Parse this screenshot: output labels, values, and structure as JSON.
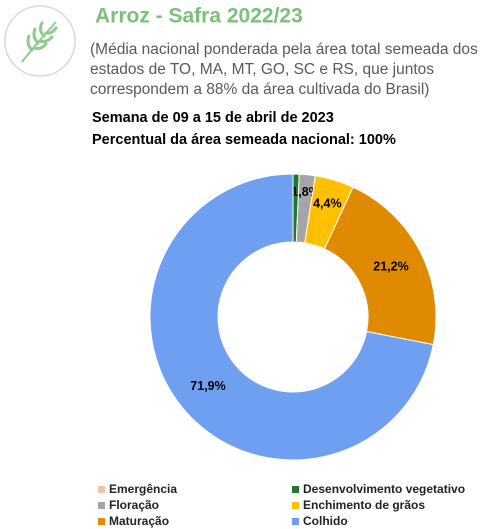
{
  "chart_data": {
    "type": "donut",
    "title": "Arroz - Safra 2022/23",
    "subtitle": [
      "(Média nacional ponderada pela área total semeada dos",
      "estados de TO, MA, MT, GO, SC e RS, que juntos",
      "correspondem a 88% da área cultivada do Brasil)"
    ],
    "week": "Semana de 09 a 15 de abril de 2023",
    "area_note": "Percentual da área semeada nacional: 100%",
    "categories": [
      "Emergência",
      "Desenvolvimento vegetativo",
      "Floração",
      "Enchimento de grãos",
      "Maturação",
      "Colhido"
    ],
    "values": [
      0,
      0.7,
      1.8,
      4.4,
      21.2,
      71.9
    ],
    "value_labels": [
      null,
      null,
      "1,8%",
      "4,4%",
      "21,2%",
      "71,9%"
    ],
    "colors": [
      "#f4c2a4",
      "#1b7a2c",
      "#a5a5a5",
      "#ffc000",
      "#df8a00",
      "#6e9ff0"
    ]
  }
}
